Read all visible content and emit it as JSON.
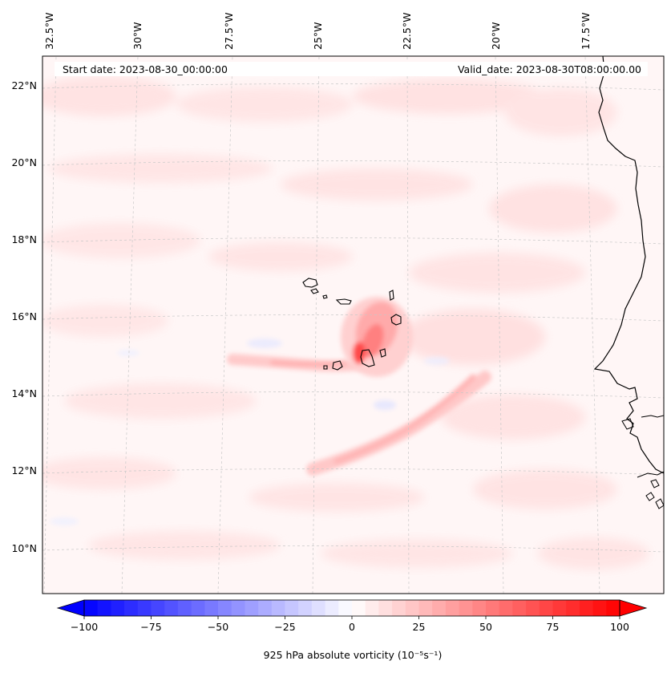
{
  "map": {
    "start_date": "Start date: 2023-08-30_00:00:00",
    "valid_date": "Valid_date: 2023-08-30T08:00:00.00",
    "lon_labels": [
      "32.5°W",
      "30°W",
      "27.5°W",
      "25°W",
      "22.5°W",
      "20°W",
      "17.5°W"
    ],
    "lat_labels": [
      "22°N",
      "20°N",
      "18°N",
      "16°N",
      "14°N",
      "12°N",
      "10°N"
    ],
    "colors": {
      "positive": "#ff0000",
      "negative": "#0000ff",
      "land_outline": "#000000",
      "background": "#fff5f5"
    }
  },
  "colorbar": {
    "label": "925 hPa absolute vorticity (10⁻⁵s⁻¹)",
    "tick_labels": [
      "−100",
      "−75",
      "−50",
      "−25",
      "0",
      "25",
      "50",
      "75",
      "100"
    ],
    "range": [
      -100,
      100
    ],
    "step": 5
  }
}
